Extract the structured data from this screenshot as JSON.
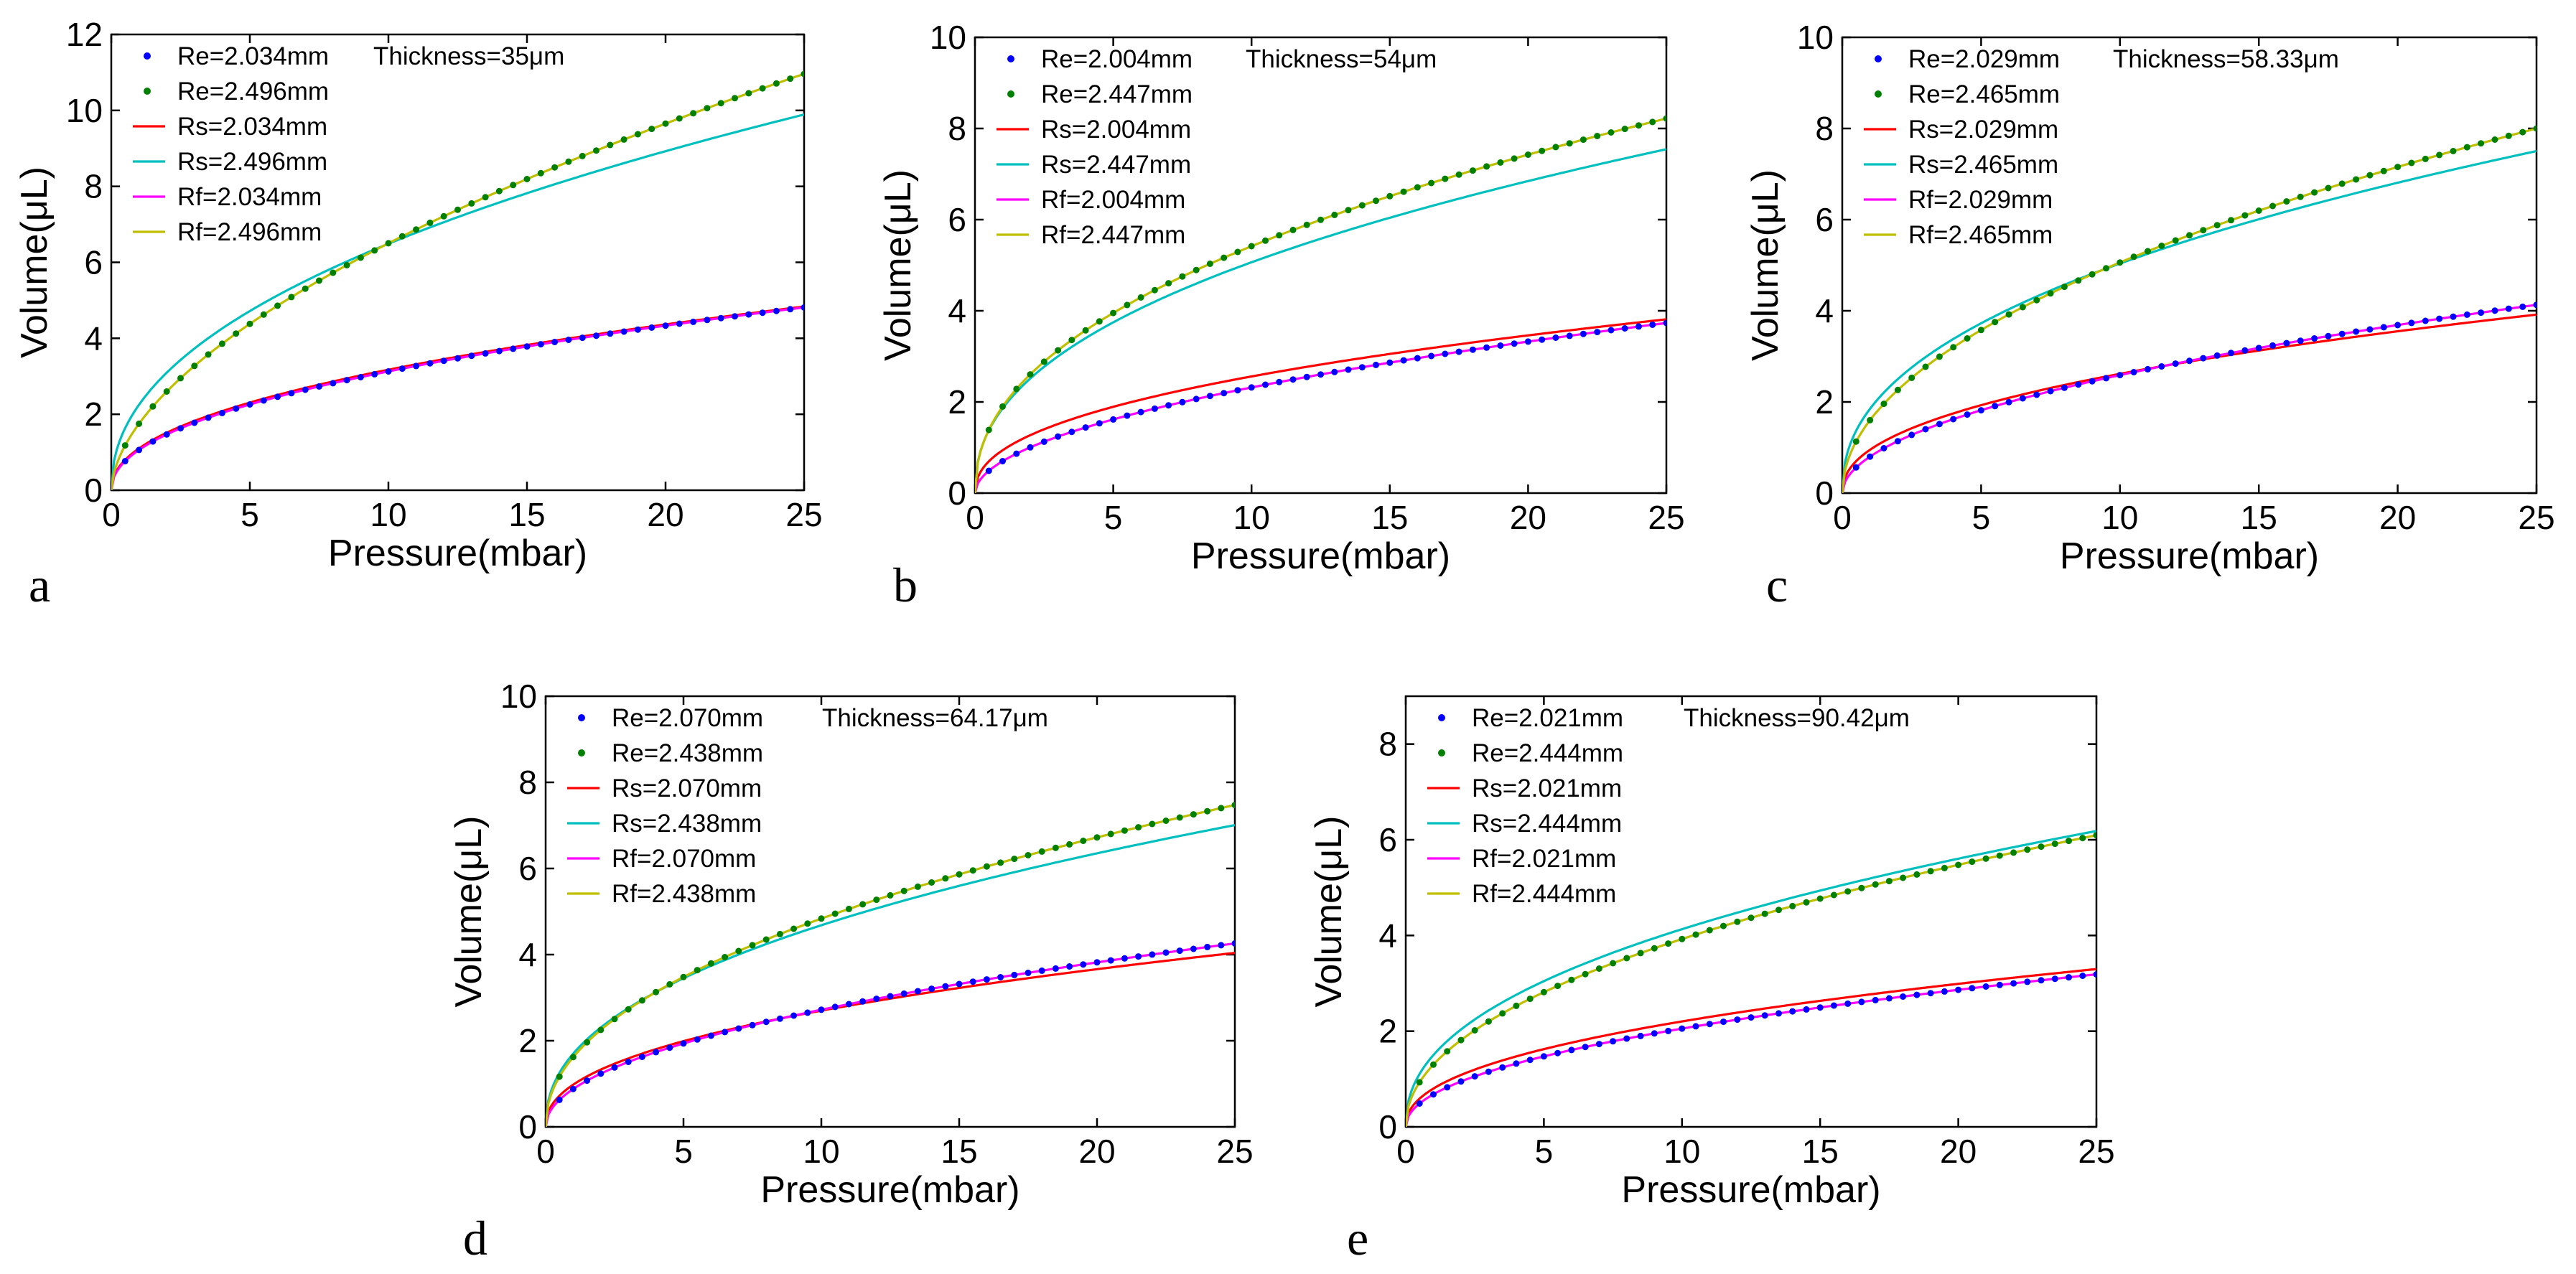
{
  "colors": {
    "Re_small": "#0000ff",
    "Re_large": "#008000",
    "Rs_small": "#ff0000",
    "Rs_large": "#00bfbf",
    "Rf_small": "#ff00ff",
    "Rf_large": "#bfbf00"
  },
  "chart_data": [
    {
      "type": "line",
      "panel_label": "a",
      "thickness_text": "Thickness=35μm",
      "xlabel": "Pressure(mbar)",
      "ylabel": "Volume(μL)",
      "xlim": [
        0,
        25
      ],
      "ylim": [
        0,
        12
      ],
      "xticks": [
        0,
        5,
        10,
        15,
        20,
        25
      ],
      "yticks": [
        0,
        2,
        4,
        6,
        8,
        10,
        12
      ],
      "series": [
        {
          "name": "Re=2.034mm",
          "kind": "dots",
          "color_key": "Re_small",
          "coef": 1.06,
          "exp": 0.47
        },
        {
          "name": "Re=2.496mm",
          "kind": "dots",
          "color_key": "Re_large",
          "coef": 1.75,
          "exp": 0.57
        },
        {
          "name": "Rs=2.034mm",
          "kind": "line",
          "color_key": "Rs_small",
          "coef": 1.1,
          "exp": 0.46
        },
        {
          "name": "Rs=2.496mm",
          "kind": "line",
          "color_key": "Rs_large",
          "coef": 2.25,
          "exp": 0.46
        },
        {
          "name": "Rf=2.034mm",
          "kind": "line",
          "color_key": "Rf_small",
          "coef": 1.06,
          "exp": 0.47
        },
        {
          "name": "Rf=2.496mm",
          "kind": "line",
          "color_key": "Rf_large",
          "coef": 1.75,
          "exp": 0.57
        }
      ]
    },
    {
      "type": "line",
      "panel_label": "b",
      "thickness_text": "Thickness=54μm",
      "xlabel": "Pressure(mbar)",
      "ylabel": "Volume(μL)",
      "xlim": [
        0,
        25
      ],
      "ylim": [
        0,
        10
      ],
      "xticks": [
        0,
        5,
        10,
        15,
        20,
        25
      ],
      "yticks": [
        0,
        2,
        4,
        6,
        8,
        10
      ],
      "series": [
        {
          "name": "Re=2.004mm",
          "kind": "dots",
          "color_key": "Re_small",
          "coef": 0.7,
          "exp": 0.52
        },
        {
          "name": "Re=2.447mm",
          "kind": "dots",
          "color_key": "Re_large",
          "coef": 1.9,
          "exp": 0.455
        },
        {
          "name": "Rs=2.004mm",
          "kind": "line",
          "color_key": "Rs_small",
          "coef": 0.94,
          "exp": 0.435
        },
        {
          "name": "Rs=2.447mm",
          "kind": "line",
          "color_key": "Rs_large",
          "coef": 1.86,
          "exp": 0.435
        },
        {
          "name": "Rf=2.004mm",
          "kind": "line",
          "color_key": "Rf_small",
          "coef": 0.7,
          "exp": 0.52
        },
        {
          "name": "Rf=2.447mm",
          "kind": "line",
          "color_key": "Rf_large",
          "coef": 1.9,
          "exp": 0.455
        }
      ]
    },
    {
      "type": "line",
      "panel_label": "c",
      "thickness_text": "Thickness=58.33μm",
      "xlabel": "Pressure(mbar)",
      "ylabel": "Volume(μL)",
      "xlim": [
        0,
        25
      ],
      "ylim": [
        0,
        10
      ],
      "xticks": [
        0,
        5,
        10,
        15,
        20,
        25
      ],
      "yticks": [
        0,
        2,
        4,
        6,
        8,
        10
      ],
      "series": [
        {
          "name": "Re=2.029mm",
          "kind": "dots",
          "color_key": "Re_small",
          "coef": 0.8,
          "exp": 0.51
        },
        {
          "name": "Re=2.465mm",
          "kind": "dots",
          "color_key": "Re_large",
          "coef": 1.6,
          "exp": 0.5
        },
        {
          "name": "Rs=2.029mm",
          "kind": "line",
          "color_key": "Rs_small",
          "coef": 0.95,
          "exp": 0.44
        },
        {
          "name": "Rs=2.465mm",
          "kind": "line",
          "color_key": "Rs_large",
          "coef": 1.85,
          "exp": 0.435
        },
        {
          "name": "Rf=2.029mm",
          "kind": "line",
          "color_key": "Rf_small",
          "coef": 0.8,
          "exp": 0.51
        },
        {
          "name": "Rf=2.465mm",
          "kind": "line",
          "color_key": "Rf_large",
          "coef": 1.6,
          "exp": 0.5
        }
      ]
    },
    {
      "type": "line",
      "panel_label": "d",
      "thickness_text": "Thickness=64.17μm",
      "xlabel": "Pressure(mbar)",
      "ylabel": "Volume(μL)",
      "xlim": [
        0,
        25
      ],
      "ylim": [
        0,
        10
      ],
      "xticks": [
        0,
        5,
        10,
        15,
        20,
        25
      ],
      "yticks": [
        0,
        2,
        4,
        6,
        8,
        10
      ],
      "series": [
        {
          "name": "Re=2.070mm",
          "kind": "dots",
          "color_key": "Re_small",
          "coef": 0.88,
          "exp": 0.49
        },
        {
          "name": "Re=2.438mm",
          "kind": "dots",
          "color_key": "Re_large",
          "coef": 1.62,
          "exp": 0.475
        },
        {
          "name": "Rs=2.070mm",
          "kind": "line",
          "color_key": "Rs_small",
          "coef": 0.98,
          "exp": 0.44
        },
        {
          "name": "Rs=2.438mm",
          "kind": "line",
          "color_key": "Rs_large",
          "coef": 1.7,
          "exp": 0.44
        },
        {
          "name": "Rf=2.070mm",
          "kind": "line",
          "color_key": "Rf_small",
          "coef": 0.88,
          "exp": 0.49
        },
        {
          "name": "Rf=2.438mm",
          "kind": "line",
          "color_key": "Rf_large",
          "coef": 1.62,
          "exp": 0.475
        }
      ]
    },
    {
      "type": "line",
      "panel_label": "e",
      "thickness_text": "Thickness=90.42μm",
      "xlabel": "Pressure(mbar)",
      "ylabel": "Volume(μL)",
      "xlim": [
        0,
        25
      ],
      "ylim": [
        0,
        9
      ],
      "xticks": [
        0,
        5,
        10,
        15,
        20,
        25
      ],
      "yticks": [
        0,
        2,
        4,
        6,
        8
      ],
      "series": [
        {
          "name": "Re=2.021mm",
          "kind": "dots",
          "color_key": "Re_small",
          "coef": 0.68,
          "exp": 0.48
        },
        {
          "name": "Re=2.444mm",
          "kind": "dots",
          "color_key": "Re_large",
          "coef": 1.3,
          "exp": 0.48
        },
        {
          "name": "Rs=2.021mm",
          "kind": "line",
          "color_key": "Rs_small",
          "coef": 0.8,
          "exp": 0.44
        },
        {
          "name": "Rs=2.444mm",
          "kind": "line",
          "color_key": "Rs_large",
          "coef": 1.5,
          "exp": 0.44
        },
        {
          "name": "Rf=2.021mm",
          "kind": "line",
          "color_key": "Rf_small",
          "coef": 0.68,
          "exp": 0.48
        },
        {
          "name": "Rf=2.444mm",
          "kind": "line",
          "color_key": "Rf_large",
          "coef": 1.3,
          "exp": 0.48
        }
      ]
    }
  ]
}
